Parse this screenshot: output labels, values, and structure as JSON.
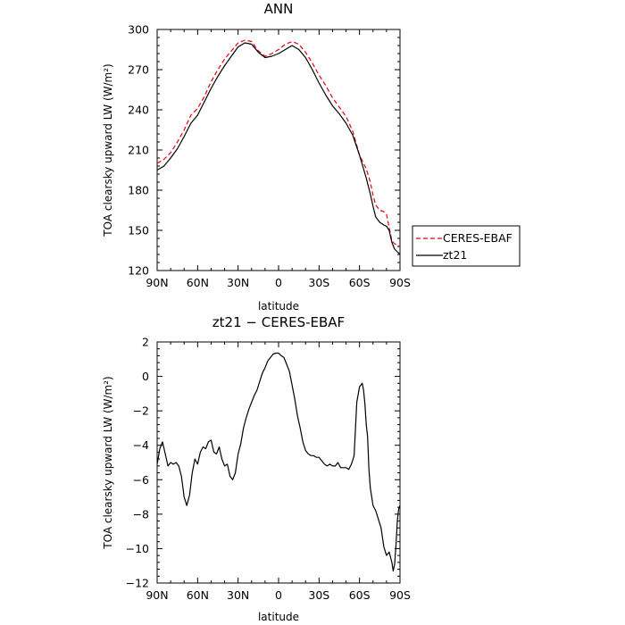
{
  "chart_data": [
    {
      "type": "line",
      "title": "ANN",
      "xlabel": "latitude",
      "ylabel": "TOA clearsky upward LW (W/m²)",
      "xlim": [
        90,
        -90
      ],
      "ylim": [
        120,
        300
      ],
      "x_ticks": [
        90,
        60,
        30,
        0,
        -30,
        -60,
        -90
      ],
      "x_tick_labels": [
        "90N",
        "60N",
        "30N",
        "0",
        "30S",
        "60S",
        "90S"
      ],
      "y_ticks": [
        120,
        150,
        180,
        210,
        240,
        270,
        300
      ],
      "y_tick_labels": [
        "120",
        "150",
        "180",
        "210",
        "240",
        "270",
        "300"
      ],
      "legend": {
        "position": "right",
        "entries": [
          "CERES-EBAF",
          "zt21"
        ]
      },
      "series": [
        {
          "name": "CERES-EBAF",
          "color": "#e8000b",
          "dash": "dashed",
          "x": [
            90,
            85,
            80,
            75,
            70,
            65,
            60,
            55,
            50,
            45,
            40,
            35,
            30,
            25,
            20,
            15,
            10,
            5,
            0,
            -5,
            -10,
            -15,
            -20,
            -25,
            -30,
            -35,
            -40,
            -45,
            -50,
            -55,
            -60,
            -65,
            -68,
            -70,
            -72,
            -75,
            -78,
            -80,
            -82,
            -84,
            -86,
            -88,
            -90
          ],
          "values": [
            200,
            203,
            208,
            216,
            225,
            236,
            241,
            250,
            261,
            270,
            278,
            284,
            290,
            292,
            291,
            284,
            280,
            282,
            285,
            289,
            291,
            289,
            283,
            275,
            266,
            258,
            249,
            242,
            235,
            224,
            206,
            196,
            186,
            176,
            169,
            165,
            164,
            162,
            152,
            142,
            140,
            139,
            138
          ]
        },
        {
          "name": "zt21",
          "color": "#000000",
          "dash": "solid",
          "x": [
            90,
            85,
            80,
            75,
            70,
            65,
            60,
            55,
            50,
            45,
            40,
            35,
            30,
            25,
            20,
            15,
            10,
            5,
            0,
            -5,
            -10,
            -15,
            -20,
            -25,
            -30,
            -35,
            -40,
            -45,
            -50,
            -55,
            -60,
            -65,
            -68,
            -70,
            -72,
            -75,
            -78,
            -80,
            -82,
            -84,
            -86,
            -88,
            -90
          ],
          "values": [
            195,
            198,
            204,
            211,
            220,
            230,
            236,
            246,
            256,
            265,
            273,
            280,
            287,
            290,
            289,
            283,
            279,
            280,
            282,
            285,
            288,
            285,
            279,
            270,
            260,
            251,
            243,
            237,
            230,
            221,
            206,
            189,
            177,
            168,
            160,
            156,
            154,
            153,
            150,
            141,
            136,
            134,
            132
          ]
        }
      ]
    },
    {
      "type": "line",
      "title": "zt21 − CERES-EBAF",
      "xlabel": "latitude",
      "ylabel": "TOA clearsky upward LW (W/m²)",
      "xlim": [
        90,
        -90
      ],
      "ylim": [
        -12,
        2
      ],
      "x_ticks": [
        90,
        60,
        30,
        0,
        -30,
        -60,
        -90
      ],
      "x_tick_labels": [
        "90N",
        "60N",
        "30N",
        "0",
        "30S",
        "60S",
        "90S"
      ],
      "y_ticks": [
        -12,
        -10,
        -8,
        -6,
        -4,
        -2,
        0,
        2
      ],
      "y_tick_labels": [
        "−12",
        "−10",
        "−8",
        "−6",
        "−4",
        "−2",
        "0",
        "2"
      ],
      "series": [
        {
          "color": "#000000",
          "x": [
            90,
            88,
            86,
            84,
            82,
            80,
            78,
            76,
            74,
            72,
            70,
            68,
            66,
            64,
            62,
            60,
            58,
            56,
            54,
            52,
            50,
            48,
            46,
            44,
            42,
            40,
            38,
            36,
            34,
            32,
            30,
            28,
            26,
            24,
            22,
            20,
            18,
            16,
            14,
            12,
            10,
            8,
            6,
            4,
            2,
            0,
            -2,
            -4,
            -6,
            -8,
            -10,
            -12,
            -14,
            -16,
            -18,
            -20,
            -22,
            -24,
            -26,
            -28,
            -30,
            -32,
            -34,
            -36,
            -38,
            -40,
            -42,
            -44,
            -46,
            -48,
            -50,
            -52,
            -54,
            -56,
            -58,
            -60,
            -61,
            -62,
            -63,
            -64,
            -65,
            -66,
            -67,
            -68,
            -70,
            -72,
            -74,
            -76,
            -78,
            -80,
            -82,
            -84,
            -85,
            -86,
            -87,
            -88,
            -89,
            -90
          ],
          "values": [
            -5.1,
            -4.2,
            -3.8,
            -4.5,
            -5.2,
            -5.0,
            -5.1,
            -5.0,
            -5.2,
            -5.8,
            -7.0,
            -7.5,
            -6.9,
            -5.6,
            -4.8,
            -5.1,
            -4.4,
            -4.1,
            -4.2,
            -3.8,
            -3.7,
            -4.4,
            -4.5,
            -4.1,
            -4.8,
            -5.2,
            -5.1,
            -5.8,
            -6.0,
            -5.6,
            -4.5,
            -3.9,
            -3.0,
            -2.4,
            -1.9,
            -1.5,
            -1.1,
            -0.8,
            -0.3,
            0.2,
            0.5,
            0.9,
            1.1,
            1.3,
            1.35,
            1.35,
            1.2,
            1.1,
            0.7,
            0.3,
            -0.5,
            -1.3,
            -2.3,
            -3.0,
            -3.8,
            -4.3,
            -4.5,
            -4.6,
            -4.6,
            -4.7,
            -4.7,
            -4.9,
            -5.1,
            -5.2,
            -5.1,
            -5.2,
            -5.2,
            -5.0,
            -5.3,
            -5.3,
            -5.3,
            -5.4,
            -5.1,
            -4.6,
            -1.5,
            -0.6,
            -0.5,
            -0.4,
            -0.8,
            -1.6,
            -2.8,
            -3.5,
            -5.4,
            -6.5,
            -7.5,
            -7.8,
            -8.3,
            -8.8,
            -9.9,
            -10.4,
            -10.2,
            -10.8,
            -11.3,
            -10.9,
            -9.8,
            -8.4,
            -7.7,
            -7.5
          ]
        }
      ]
    }
  ]
}
